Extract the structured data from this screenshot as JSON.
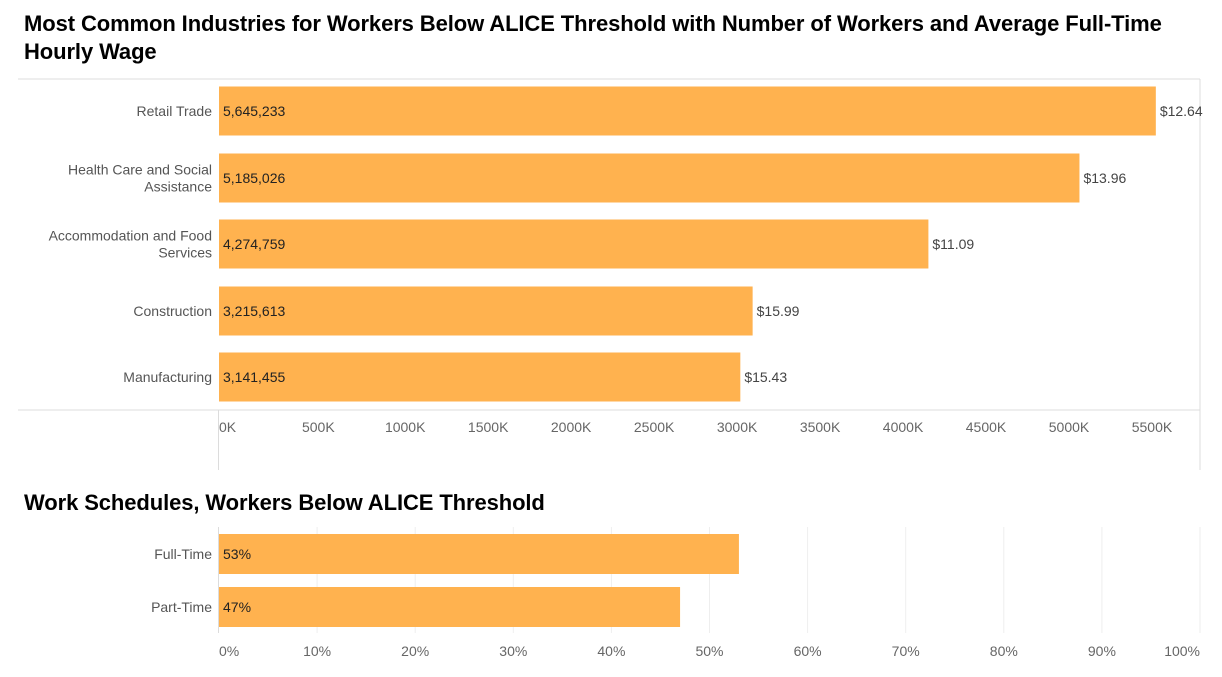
{
  "chart_data": [
    {
      "type": "bar",
      "orientation": "horizontal",
      "title": "Most Common Industries for Workers Below ALICE Threshold with Number of Workers and Average Full-Time Hourly Wage",
      "categories": [
        [
          "Retail Trade"
        ],
        [
          "Health Care and Social",
          "Assistance"
        ],
        [
          "Accommodation and Food",
          "Services"
        ],
        [
          "Construction"
        ],
        [
          "Manufacturing"
        ]
      ],
      "values": [
        5645233,
        5185026,
        4274759,
        3215613,
        3141455
      ],
      "value_labels": [
        "5,645,233",
        "5,185,026",
        "4,274,759",
        "3,215,613",
        "3,141,455"
      ],
      "wage_labels": [
        "$12.64",
        "$13.96",
        "$11.09",
        "$15.99",
        "$15.43"
      ],
      "xlim": [
        0,
        5900000
      ],
      "xticks": [
        0,
        500000,
        1000000,
        1500000,
        2000000,
        2500000,
        3000000,
        3500000,
        4000000,
        4500000,
        5000000,
        5500000
      ],
      "xtick_labels": [
        "0K",
        "500K",
        "1000K",
        "1500K",
        "2000K",
        "2500K",
        "3000K",
        "3500K",
        "4000K",
        "4500K",
        "5000K",
        "5500K"
      ],
      "grid": false,
      "color": "#ffb24f"
    },
    {
      "type": "bar",
      "orientation": "horizontal",
      "title": "Work Schedules, Workers Below ALICE Threshold",
      "categories": [
        [
          "Full-Time"
        ],
        [
          "Part-Time"
        ]
      ],
      "values": [
        53,
        47
      ],
      "value_labels": [
        "53%",
        "47%"
      ],
      "xlim": [
        0,
        100
      ],
      "xticks": [
        0,
        10,
        20,
        30,
        40,
        50,
        60,
        70,
        80,
        90,
        100
      ],
      "xtick_labels": [
        "0%",
        "10%",
        "20%",
        "30%",
        "40%",
        "50%",
        "60%",
        "70%",
        "80%",
        "90%",
        "100%"
      ],
      "grid": true,
      "color": "#ffb24f"
    }
  ]
}
